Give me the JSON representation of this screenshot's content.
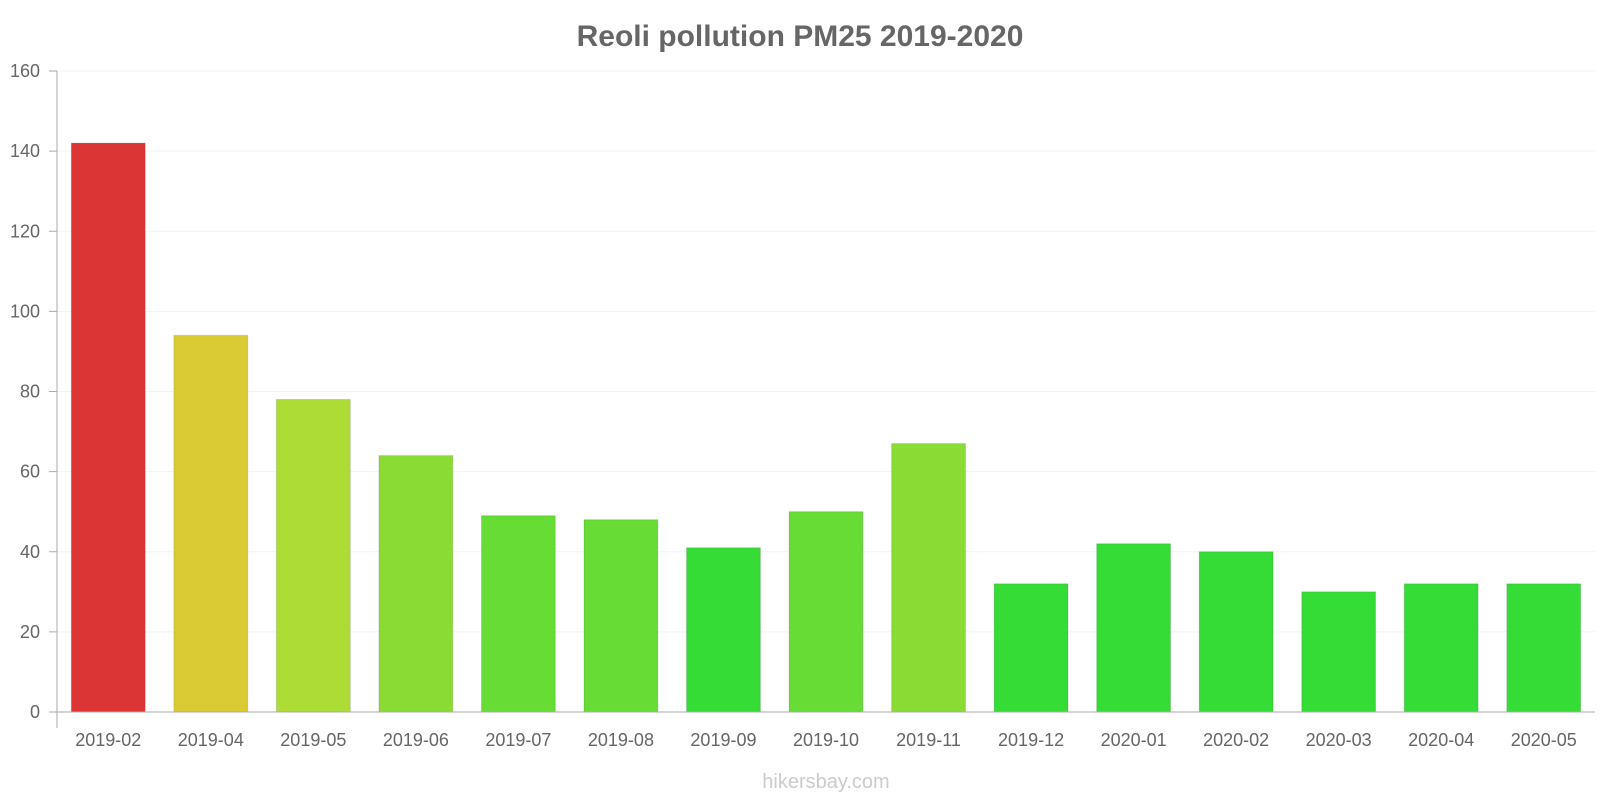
{
  "chart_data": {
    "type": "bar",
    "title": "Reoli pollution PM25 2019-2020",
    "xlabel": "",
    "ylabel": "",
    "ylim": [
      0,
      160
    ],
    "yticks": [
      0,
      20,
      40,
      60,
      80,
      100,
      120,
      140,
      160
    ],
    "categories": [
      "2019-02",
      "2019-04",
      "2019-05",
      "2019-06",
      "2019-07",
      "2019-08",
      "2019-09",
      "2019-10",
      "2019-11",
      "2019-12",
      "2020-01",
      "2020-02",
      "2020-03",
      "2020-04",
      "2020-05"
    ],
    "values": [
      142,
      94,
      78,
      64,
      49,
      48,
      41,
      50,
      67,
      32,
      42,
      40,
      30,
      32,
      32
    ],
    "colors": [
      "#dc3535",
      "#dacb35",
      "#acdc35",
      "#8adc35",
      "#66dc35",
      "#66dc35",
      "#35dc35",
      "#66dc35",
      "#8adc35",
      "#35dc35",
      "#35dc35",
      "#35dc35",
      "#35dc35",
      "#35dc35",
      "#35dc35"
    ],
    "grid": true,
    "legend": "none"
  },
  "source": "hikersbay.com"
}
